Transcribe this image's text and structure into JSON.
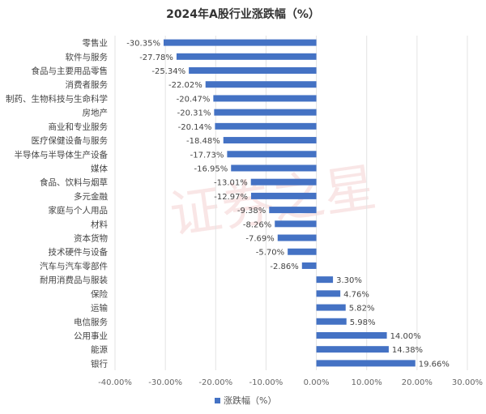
{
  "chart_data": {
    "type": "bar",
    "orientation": "horizontal",
    "title": "2024年A股行业涨跌幅（%）",
    "categories": [
      "零售业",
      "软件与服务",
      "食品与主要用品零售",
      "消费者服务",
      "制药、生物科技与生命科学",
      "房地产",
      "商业和专业服务",
      "医疗保健设备与服务",
      "半导体与半导体生产设备",
      "媒体",
      "食品、饮料与烟草",
      "多元金融",
      "家庭与个人用品",
      "材料",
      "资本货物",
      "技术硬件与设备",
      "汽车与汽车零部件",
      "耐用消费品与服装",
      "保险",
      "运输",
      "电信服务",
      "公用事业",
      "能源",
      "银行"
    ],
    "series": [
      {
        "name": "涨跌幅（%）",
        "values": [
          -30.35,
          -27.78,
          -25.34,
          -22.02,
          -20.47,
          -20.31,
          -20.14,
          -18.48,
          -17.73,
          -16.95,
          -13.01,
          -12.97,
          -9.38,
          -8.26,
          -7.69,
          -5.7,
          -2.86,
          3.3,
          4.76,
          5.82,
          5.98,
          14.0,
          14.38,
          19.66
        ],
        "labels": [
          "-30.35%",
          "-27.78%",
          "-25.34%",
          "-22.02%",
          "-20.47%",
          "-20.31%",
          "-20.14%",
          "-18.48%",
          "-17.73%",
          "-16.95%",
          "-13.01%",
          "-12.97%",
          "-9.38%",
          "-8.26%",
          "-7.69%",
          "-5.70%",
          "-2.86%",
          "3.30%",
          "4.76%",
          "5.82%",
          "5.98%",
          "14.00%",
          "14.38%",
          "19.66%"
        ],
        "color": "#4472C4"
      }
    ],
    "xlim": [
      -40,
      30
    ],
    "xticks": [
      "-40.00%",
      "-30.00%",
      "-20.00%",
      "-10.00%",
      "0.00%",
      "10.00%",
      "20.00%",
      "30.00%"
    ],
    "grid": true,
    "legend": "bottom",
    "watermark": "证券之星"
  }
}
